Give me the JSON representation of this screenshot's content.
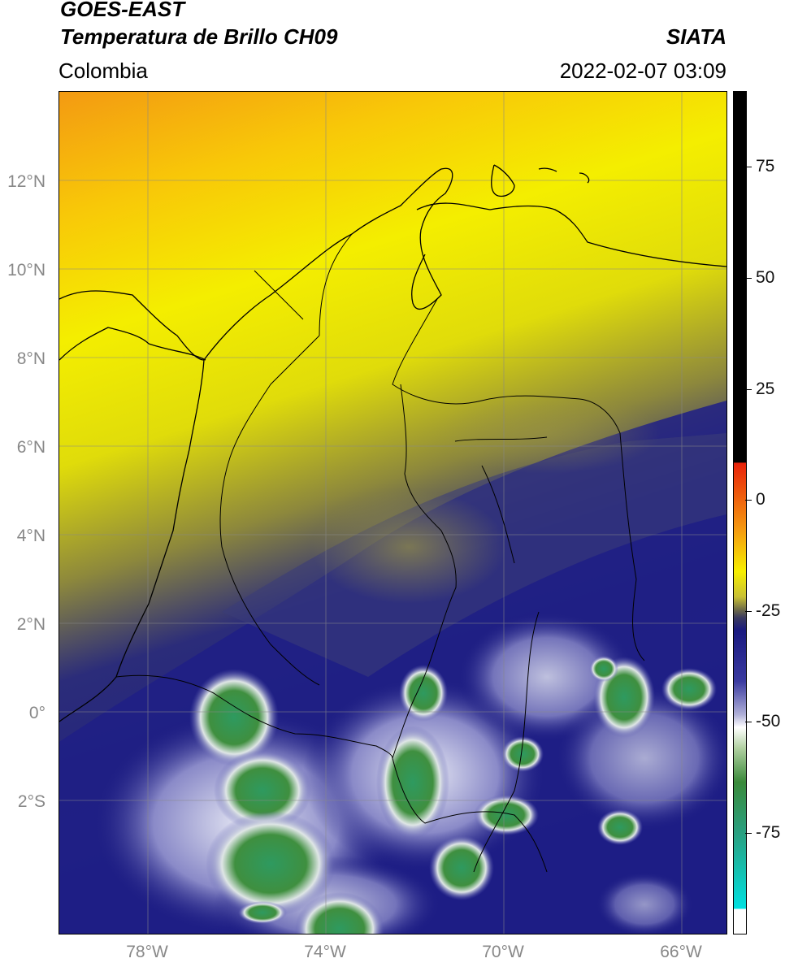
{
  "header": {
    "satellite": "GOES-EAST",
    "product": "Temperatura de Brillo CH09",
    "institution": "SIATA",
    "region": "Colombia",
    "datetime": "2022-02-07 03:09"
  },
  "map": {
    "lon_range": [
      -80,
      -65
    ],
    "lat_range": [
      -5,
      14
    ],
    "lat_ticks": [
      "12°N",
      "10°N",
      "8°N",
      "6°N",
      "4°N",
      "2°N",
      "0°",
      "2°S"
    ],
    "lon_ticks": [
      "78°W",
      "74°W",
      "70°W",
      "66°W"
    ],
    "gridlines": true
  },
  "colorbar": {
    "ticks": [
      "75",
      "50",
      "25",
      "0",
      "-25",
      "-50",
      "-75"
    ],
    "colors": {
      "warm": "#000000",
      "red": "#e8220a",
      "orange": "#f59a10",
      "yellow": "#f7ef00",
      "olive": "#8f8a3c",
      "navy": "#1a1a80",
      "white": "#ffffff",
      "green": "#3a8a3a",
      "cyan": "#00e0e0"
    }
  }
}
